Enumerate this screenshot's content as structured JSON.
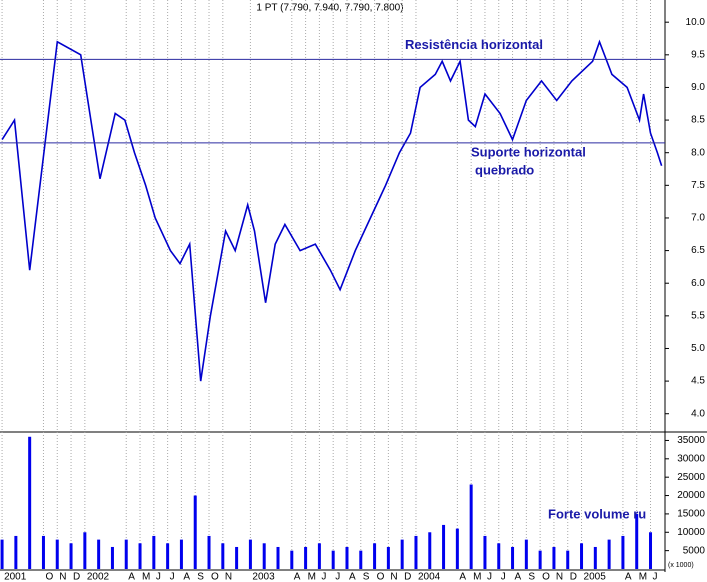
{
  "chart_data": [
    {
      "type": "line",
      "title": "1 PT (7.790, 7.940, 7.790, 7.800)",
      "x": [
        0,
        0.9,
        2,
        4,
        5.7,
        7.1,
        8.2,
        8.9,
        9.6,
        10.4,
        11.1,
        12.2,
        12.9,
        13.6,
        14.4,
        15.1,
        16.2,
        16.9,
        17.8,
        18.3,
        19.1,
        19.8,
        20.5,
        21.6,
        22.7,
        23.8,
        24.5,
        25.6,
        26.7,
        27.8,
        28.8,
        29.6,
        30.3,
        31.4,
        31.9,
        32.5,
        33.2,
        33.8,
        34.3,
        35,
        36.1,
        37,
        38,
        39.1,
        40.2,
        41.3,
        42.8,
        43.3,
        44.2,
        45.3,
        46.2,
        46.5,
        47,
        47.5,
        47.8
      ],
      "series": [
        {
          "name": "1 PT",
          "color": "#0000cc",
          "values": [
            8.2,
            8.5,
            6.2,
            9.7,
            9.5,
            7.6,
            8.6,
            8.5,
            8.0,
            7.5,
            7.0,
            6.5,
            6.3,
            6.6,
            4.5,
            5.5,
            6.8,
            6.5,
            7.2,
            6.8,
            5.7,
            6.6,
            6.9,
            6.5,
            6.6,
            6.2,
            5.9,
            6.5,
            7.0,
            7.5,
            8.0,
            8.3,
            9.0,
            9.2,
            9.4,
            9.1,
            9.4,
            8.5,
            8.4,
            8.9,
            8.6,
            8.2,
            8.8,
            9.1,
            8.8,
            9.1,
            9.4,
            9.7,
            9.2,
            9.0,
            8.5,
            8.9,
            8.3,
            8.0,
            7.8
          ]
        }
      ],
      "xlim": [
        -0.15,
        48.05
      ],
      "xticks": [
        {
          "value": 0,
          "label": "2001"
        },
        {
          "value": 3,
          "label": "O"
        },
        {
          "value": 4,
          "label": "N"
        },
        {
          "value": 5,
          "label": "D"
        },
        {
          "value": 6,
          "label": "2002"
        },
        {
          "value": 9,
          "label": "A"
        },
        {
          "value": 10,
          "label": "M"
        },
        {
          "value": 11,
          "label": "J"
        },
        {
          "value": 12,
          "label": "J"
        },
        {
          "value": 13,
          "label": "A"
        },
        {
          "value": 14,
          "label": "S"
        },
        {
          "value": 15,
          "label": "O"
        },
        {
          "value": 16,
          "label": "N"
        },
        {
          "value": 18,
          "label": "2003"
        },
        {
          "value": 21,
          "label": "A"
        },
        {
          "value": 22,
          "label": "M"
        },
        {
          "value": 23,
          "label": "J"
        },
        {
          "value": 24,
          "label": "J"
        },
        {
          "value": 25,
          "label": "A"
        },
        {
          "value": 26,
          "label": "S"
        },
        {
          "value": 27,
          "label": "O"
        },
        {
          "value": 28,
          "label": "N"
        },
        {
          "value": 29,
          "label": "D"
        },
        {
          "value": 30,
          "label": "2004"
        },
        {
          "value": 33,
          "label": "A"
        },
        {
          "value": 34,
          "label": "M"
        },
        {
          "value": 35,
          "label": "J"
        },
        {
          "value": 36,
          "label": "J"
        },
        {
          "value": 37,
          "label": "A"
        },
        {
          "value": 38,
          "label": "S"
        },
        {
          "value": 39,
          "label": "O"
        },
        {
          "value": 40,
          "label": "N"
        },
        {
          "value": 41,
          "label": "D"
        },
        {
          "value": 42,
          "label": "2005"
        },
        {
          "value": 45,
          "label": "A"
        },
        {
          "value": 46,
          "label": "M"
        },
        {
          "value": 47,
          "label": "J"
        }
      ],
      "ylim": [
        3.72,
        10.34
      ],
      "yticks": [
        {
          "value": 4,
          "label": "4.0"
        },
        4.5,
        {
          "value": 5,
          "label": "5.0"
        },
        5.5,
        {
          "value": 6,
          "label": "6.0"
        },
        6.5,
        {
          "value": 7,
          "label": "7.0"
        },
        7.5,
        {
          "value": 8,
          "label": "8.0"
        },
        8.5,
        {
          "value": 9,
          "label": "9.0"
        },
        9.5,
        {
          "value": 10,
          "label": "10.0"
        }
      ],
      "grid": true,
      "hlines": [
        {
          "value": 9.43,
          "label_lines": [
            "Resistência horizontal"
          ]
        },
        {
          "value": 8.15,
          "label_lines": [
            "Suporte horizontal",
            "quebrado"
          ]
        }
      ]
    },
    {
      "type": "bar",
      "title": "Forte volume ru",
      "unit_label": "(x 1000)",
      "x": [
        0,
        1,
        2,
        3,
        4,
        5,
        6,
        7,
        8,
        9,
        10,
        11,
        12,
        13,
        14,
        15,
        16,
        17,
        18,
        19,
        20,
        21,
        22,
        23,
        24,
        25,
        26,
        27,
        28,
        29,
        30,
        31,
        32,
        33,
        34,
        35,
        36,
        37,
        38,
        39,
        40,
        41,
        42,
        43,
        44,
        45,
        46,
        47
      ],
      "series": [
        {
          "name": "Volume",
          "color": "#0000ee",
          "values": [
            8000,
            9000,
            36000,
            9000,
            8000,
            7000,
            10000,
            8000,
            6000,
            8000,
            7000,
            9000,
            7000,
            8000,
            20000,
            9000,
            7000,
            6000,
            8000,
            7000,
            6000,
            5000,
            6000,
            7000,
            5000,
            6000,
            5000,
            7000,
            6000,
            8000,
            9000,
            10000,
            12000,
            11000,
            23000,
            9000,
            7000,
            6000,
            8000,
            5000,
            6000,
            5000,
            7000,
            6000,
            8000,
            9000,
            15000,
            10000
          ]
        }
      ],
      "ylim": [
        0,
        37300
      ],
      "yticks": [
        5000,
        10000,
        15000,
        20000,
        25000,
        30000,
        35000
      ]
    }
  ]
}
